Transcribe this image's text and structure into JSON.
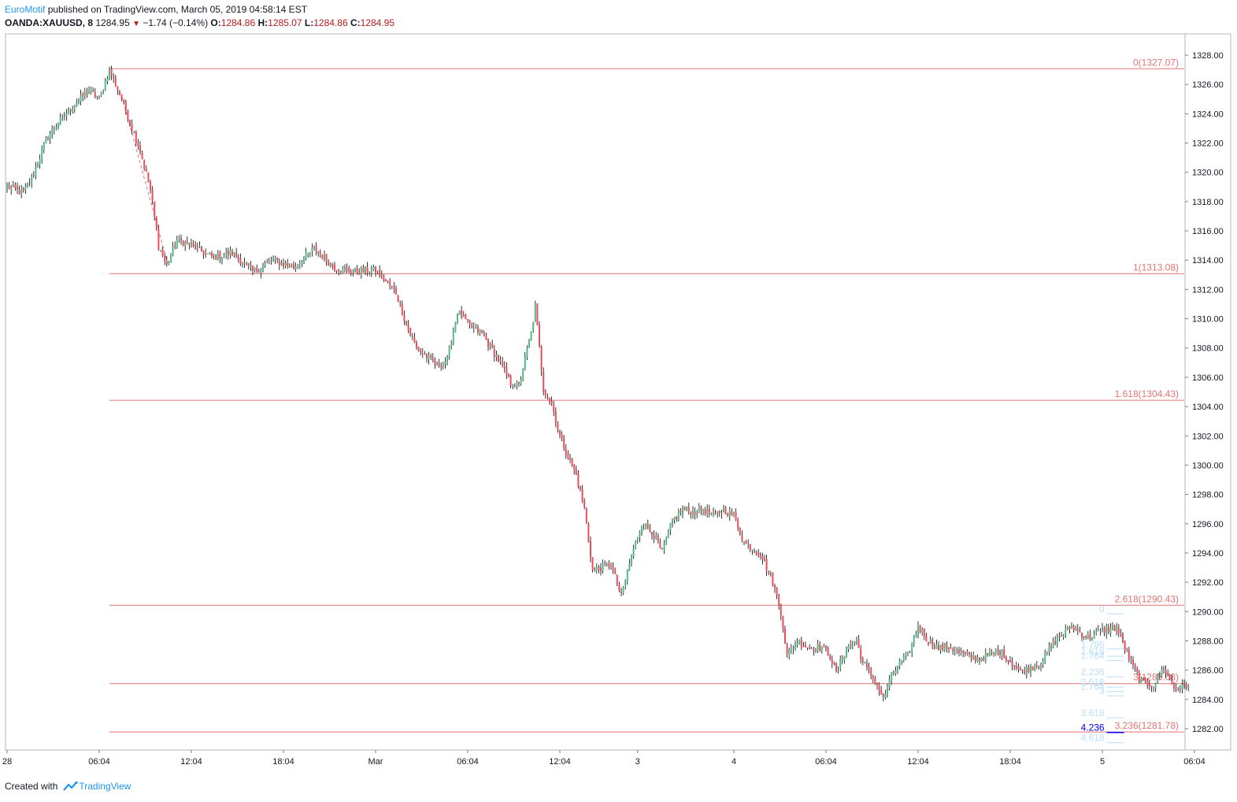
{
  "header": {
    "author": "EuroMotif",
    "published_text": "published on TradingView.com, March 05, 2019 04:58:14 EST",
    "symbol": "OANDA:XAUUSD, 8",
    "last": "1284.95",
    "change": "−1.74 (−0.14%)",
    "o_label": "O:",
    "o": "1284.86",
    "h_label": "H:",
    "h": "1285.07",
    "l_label": "L:",
    "l": "1284.86",
    "c_label": "C:",
    "c": "1284.95"
  },
  "footer": {
    "created_with": "Created with",
    "brand": "TradingView"
  },
  "colors": {
    "up": "#53b987",
    "down": "#eb4d5c",
    "fib": "#e57373",
    "fib_small": "#bbdefb",
    "fib_highlight": "#0000ff"
  },
  "chart_data": {
    "type": "candlestick",
    "symbol": "OANDA:XAUUSD",
    "timeframe": "8",
    "y_range": [
      1280.6,
      1329.4
    ],
    "y_ticks": [
      1282,
      1284,
      1286,
      1288,
      1290,
      1292,
      1294,
      1296,
      1298,
      1300,
      1302,
      1304,
      1306,
      1308,
      1310,
      1312,
      1314,
      1316,
      1318,
      1320,
      1322,
      1324,
      1326,
      1328
    ],
    "y_tick_labels": [
      "1282.00",
      "1284.00",
      "1286.00",
      "1288.00",
      "1290.00",
      "1292.00",
      "1294.00",
      "1296.00",
      "1298.00",
      "1300.00",
      "1302.00",
      "1304.00",
      "1306.00",
      "1308.00",
      "1310.00",
      "1312.00",
      "1314.00",
      "1316.00",
      "1318.00",
      "1320.00",
      "1322.00",
      "1324.00",
      "1326.00",
      "1328.00"
    ],
    "x_ticks": [
      {
        "label": "28",
        "bar": 0
      },
      {
        "label": "06:04",
        "bar": 45
      },
      {
        "label": "12:04",
        "bar": 90
      },
      {
        "label": "18:04",
        "bar": 135
      },
      {
        "label": "Mar",
        "bar": 180
      },
      {
        "label": "06:04",
        "bar": 225
      },
      {
        "label": "12:04",
        "bar": 270
      },
      {
        "label": "3",
        "bar": 308
      },
      {
        "label": "4",
        "bar": 355
      },
      {
        "label": "06:04",
        "bar": 400
      },
      {
        "label": "12:04",
        "bar": 445
      },
      {
        "label": "18:04",
        "bar": 490
      },
      {
        "label": "5",
        "bar": 535
      },
      {
        "label": "06:04",
        "bar": 580
      }
    ],
    "anchors": [
      [
        0,
        1319.0
      ],
      [
        8,
        1318.6
      ],
      [
        12,
        1319.6
      ],
      [
        20,
        1322.5
      ],
      [
        30,
        1324.2
      ],
      [
        40,
        1325.6
      ],
      [
        45,
        1325.0
      ],
      [
        50,
        1327.0
      ],
      [
        56,
        1325.0
      ],
      [
        65,
        1321.5
      ],
      [
        70,
        1318.8
      ],
      [
        74,
        1315.0
      ],
      [
        78,
        1313.6
      ],
      [
        83,
        1315.4
      ],
      [
        90,
        1315.0
      ],
      [
        100,
        1314.2
      ],
      [
        110,
        1314.5
      ],
      [
        120,
        1313.2
      ],
      [
        130,
        1314.0
      ],
      [
        140,
        1313.5
      ],
      [
        150,
        1314.8
      ],
      [
        160,
        1313.5
      ],
      [
        170,
        1313.2
      ],
      [
        180,
        1313.3
      ],
      [
        190,
        1311.8
      ],
      [
        195,
        1309.6
      ],
      [
        200,
        1308.0
      ],
      [
        210,
        1306.8
      ],
      [
        215,
        1307.2
      ],
      [
        220,
        1310.5
      ],
      [
        226,
        1309.5
      ],
      [
        232,
        1309.0
      ],
      [
        240,
        1307.2
      ],
      [
        246,
        1305.6
      ],
      [
        250,
        1305.4
      ],
      [
        256,
        1309.0
      ],
      [
        258,
        1310.8
      ],
      [
        262,
        1305.2
      ],
      [
        266,
        1304.2
      ],
      [
        270,
        1302.0
      ],
      [
        274,
        1300.6
      ],
      [
        278,
        1299.3
      ],
      [
        282,
        1297.0
      ],
      [
        286,
        1292.8
      ],
      [
        290,
        1293.0
      ],
      [
        295,
        1293.2
      ],
      [
        300,
        1291.0
      ],
      [
        305,
        1293.8
      ],
      [
        310,
        1296.0
      ],
      [
        315,
        1295.5
      ],
      [
        320,
        1294.0
      ],
      [
        325,
        1296.2
      ],
      [
        330,
        1297.0
      ],
      [
        335,
        1296.8
      ],
      [
        340,
        1297.0
      ],
      [
        345,
        1296.5
      ],
      [
        350,
        1297.0
      ],
      [
        355,
        1296.5
      ],
      [
        360,
        1294.7
      ],
      [
        368,
        1294.0
      ],
      [
        374,
        1292.0
      ],
      [
        378,
        1290.0
      ],
      [
        381,
        1287.0
      ],
      [
        386,
        1288.0
      ],
      [
        392,
        1287.5
      ],
      [
        398,
        1287.6
      ],
      [
        402,
        1287.0
      ],
      [
        405,
        1285.8
      ],
      [
        410,
        1287.5
      ],
      [
        415,
        1288.0
      ],
      [
        418,
        1286.5
      ],
      [
        425,
        1285.0
      ],
      [
        428,
        1284.0
      ],
      [
        432,
        1285.6
      ],
      [
        436,
        1286.5
      ],
      [
        440,
        1287.0
      ],
      [
        445,
        1289.0
      ],
      [
        450,
        1288.0
      ],
      [
        455,
        1287.5
      ],
      [
        460,
        1287.6
      ],
      [
        468,
        1287.0
      ],
      [
        475,
        1286.8
      ],
      [
        485,
        1287.3
      ],
      [
        495,
        1285.9
      ],
      [
        505,
        1286.5
      ],
      [
        512,
        1288.0
      ],
      [
        520,
        1289.0
      ],
      [
        528,
        1288.2
      ],
      [
        535,
        1288.7
      ],
      [
        542,
        1288.9
      ],
      [
        548,
        1286.8
      ],
      [
        554,
        1285.2
      ],
      [
        560,
        1285.0
      ],
      [
        565,
        1286.2
      ],
      [
        570,
        1284.8
      ],
      [
        574,
        1284.8
      ],
      [
        577,
        1284.95
      ]
    ],
    "last_bar": 577,
    "fib_extension_primary": {
      "x_start_bar": 50,
      "x_end": "right-edge",
      "levels": [
        {
          "ratio": 0,
          "price": 1327.07,
          "label": "0(1327.07)"
        },
        {
          "ratio": 1,
          "price": 1313.08,
          "label": "1(1313.08)"
        },
        {
          "ratio": 1.618,
          "price": 1304.43,
          "label": "1.618(1304.43)"
        },
        {
          "ratio": 2.618,
          "price": 1290.43,
          "label": "2.618(1290.43)"
        },
        {
          "ratio": 3,
          "price": 1285.08,
          "label": "3(1285.08)"
        },
        {
          "ratio": 3.236,
          "price": 1281.78,
          "label": "3.236(1281.78)"
        }
      ]
    },
    "fib_extension_secondary": {
      "x_bar": 536,
      "levels": [
        {
          "label": "0",
          "price": 1289.9,
          "highlight": false
        },
        {
          "label": "1.786",
          "price": 1287.5,
          "highlight": false
        },
        {
          "label": "1.618",
          "price": 1287.0,
          "highlight": false
        },
        {
          "label": "1.764",
          "price": 1286.7,
          "highlight": false
        },
        {
          "label": "2.236",
          "price": 1285.6,
          "highlight": false
        },
        {
          "label": "2.618",
          "price": 1284.9,
          "highlight": false
        },
        {
          "label": "2.764",
          "price": 1284.6,
          "highlight": false
        },
        {
          "label": "3",
          "price": 1284.3,
          "highlight": false
        },
        {
          "label": "3.618",
          "price": 1282.8,
          "highlight": false
        },
        {
          "label": "4.236",
          "price": 1281.8,
          "highlight": true
        },
        {
          "label": "4.618",
          "price": 1281.1,
          "highlight": false
        }
      ]
    },
    "trend_line": {
      "from_bar": 56,
      "from_price": 1325.2,
      "to_bar": 78,
      "to_price": 1314.0
    }
  }
}
